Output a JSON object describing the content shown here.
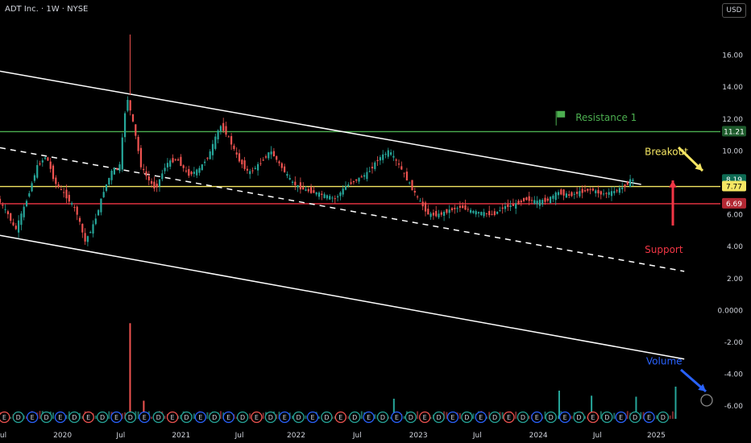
{
  "header": {
    "title": "ADT Inc. · 1W · NYSE",
    "currency": "USD"
  },
  "chart_data": {
    "type": "candlestick",
    "ylim": [
      -6.8,
      18.2
    ],
    "y_ticks": [
      16.0,
      14.0,
      12.0,
      10.0,
      8.0,
      6.0,
      4.0,
      2.0,
      0.0,
      -2.0,
      -4.0,
      -6.0
    ],
    "y_tick_labels": [
      "16.00",
      "14.00",
      "12.00",
      "10.00",
      "8.00",
      "6.00",
      "4.00",
      "2.00",
      "0.0000",
      "-2.00",
      "-4.00",
      "-6.00"
    ],
    "x_labels": [
      "Jul",
      "2020",
      "Jul",
      "2021",
      "Jul",
      "2022",
      "Jul",
      "2023",
      "Jul",
      "2024",
      "Jul",
      "2025"
    ],
    "x_label_pos": [
      0.003,
      0.087,
      0.168,
      0.252,
      0.333,
      0.412,
      0.497,
      0.582,
      0.664,
      0.749,
      0.831,
      0.913
    ],
    "price_path": [
      [
        0.0,
        7.0
      ],
      [
        0.015,
        6.0
      ],
      [
        0.025,
        5.0
      ],
      [
        0.04,
        6.8
      ],
      [
        0.055,
        9.0
      ],
      [
        0.068,
        9.7
      ],
      [
        0.08,
        8.0
      ],
      [
        0.095,
        7.2
      ],
      [
        0.11,
        6.2
      ],
      [
        0.122,
        4.3
      ],
      [
        0.135,
        5.5
      ],
      [
        0.148,
        7.5
      ],
      [
        0.16,
        8.8
      ],
      [
        0.17,
        9.0
      ],
      [
        0.18,
        13.5
      ],
      [
        0.19,
        11.5
      ],
      [
        0.2,
        9.0
      ],
      [
        0.21,
        8.2
      ],
      [
        0.22,
        7.6
      ],
      [
        0.235,
        9.2
      ],
      [
        0.25,
        9.5
      ],
      [
        0.265,
        8.5
      ],
      [
        0.28,
        8.8
      ],
      [
        0.295,
        9.8
      ],
      [
        0.31,
        11.6
      ],
      [
        0.32,
        11.0
      ],
      [
        0.335,
        9.5
      ],
      [
        0.35,
        8.6
      ],
      [
        0.365,
        9.2
      ],
      [
        0.38,
        10.0
      ],
      [
        0.395,
        9.0
      ],
      [
        0.41,
        8.0
      ],
      [
        0.425,
        7.6
      ],
      [
        0.44,
        7.4
      ],
      [
        0.455,
        7.2
      ],
      [
        0.47,
        7.0
      ],
      [
        0.485,
        7.8
      ],
      [
        0.5,
        8.2
      ],
      [
        0.515,
        8.6
      ],
      [
        0.53,
        9.5
      ],
      [
        0.545,
        10.0
      ],
      [
        0.56,
        9.0
      ],
      [
        0.57,
        8.2
      ],
      [
        0.585,
        7.0
      ],
      [
        0.6,
        6.0
      ],
      [
        0.615,
        6.0
      ],
      [
        0.63,
        6.3
      ],
      [
        0.645,
        6.5
      ],
      [
        0.66,
        6.2
      ],
      [
        0.675,
        6.1
      ],
      [
        0.69,
        6.0
      ],
      [
        0.705,
        6.5
      ],
      [
        0.72,
        6.6
      ],
      [
        0.735,
        7.0
      ],
      [
        0.75,
        6.8
      ],
      [
        0.765,
        6.9
      ],
      [
        0.78,
        7.4
      ],
      [
        0.795,
        7.2
      ],
      [
        0.81,
        7.4
      ],
      [
        0.825,
        7.6
      ],
      [
        0.84,
        7.3
      ],
      [
        0.855,
        7.4
      ],
      [
        0.87,
        7.7
      ],
      [
        0.882,
        8.19
      ]
    ],
    "horizontal_levels": [
      {
        "name": "Resistance 1",
        "value": 11.21,
        "color": "#4caf50"
      },
      {
        "name": "",
        "value": 7.77,
        "color": "#f5e663"
      },
      {
        "name": "",
        "value": 6.69,
        "color": "#f23645"
      }
    ],
    "price_labels": [
      {
        "text": "11.21",
        "value": 11.21,
        "bg": "#1e5b2c",
        "fg": "#ffffff"
      },
      {
        "text": "8.19",
        "value": 8.19,
        "bg": "#0e6b54",
        "fg": "#ffffff"
      },
      {
        "text": "7.77",
        "value": 7.77,
        "bg": "#f5e663",
        "fg": "#000000"
      },
      {
        "text": "6.69",
        "value": 6.69,
        "bg": "#b22833",
        "fg": "#ffffff"
      }
    ],
    "channel_lines": [
      {
        "style": "solid",
        "color": "#ffffff",
        "from": [
          0.0,
          15.0
        ],
        "to": [
          0.892,
          7.9
        ]
      },
      {
        "style": "dashed",
        "color": "#ffffff",
        "from": [
          0.0,
          10.2
        ],
        "to": [
          0.952,
          2.45
        ]
      },
      {
        "style": "solid",
        "color": "#ffffff",
        "from": [
          0.0,
          4.7
        ],
        "to": [
          0.952,
          -3.05
        ]
      }
    ],
    "annotations": [
      {
        "text": "Resistance 1",
        "color": "#4caf50",
        "icon": "flag-icon",
        "at": [
          0.776,
          12.1
        ]
      },
      {
        "text": "Breakout",
        "color": "#f5e663",
        "at": [
          0.897,
          9.95
        ]
      },
      {
        "text": "Support",
        "color": "#f23645",
        "at": [
          0.897,
          3.8
        ]
      },
      {
        "text": "Volume",
        "color": "#2962ff",
        "at": [
          0.899,
          -3.2
        ]
      }
    ],
    "volume_spikes": [
      [
        0.181,
        0.95
      ],
      [
        0.2,
        0.18
      ],
      [
        0.548,
        0.2
      ],
      [
        0.778,
        0.28
      ],
      [
        0.823,
        0.23
      ],
      [
        0.885,
        0.22
      ],
      [
        0.94,
        0.32
      ]
    ],
    "event_markers": [
      "E",
      "D",
      "E",
      "D",
      "E",
      "D"
    ]
  }
}
